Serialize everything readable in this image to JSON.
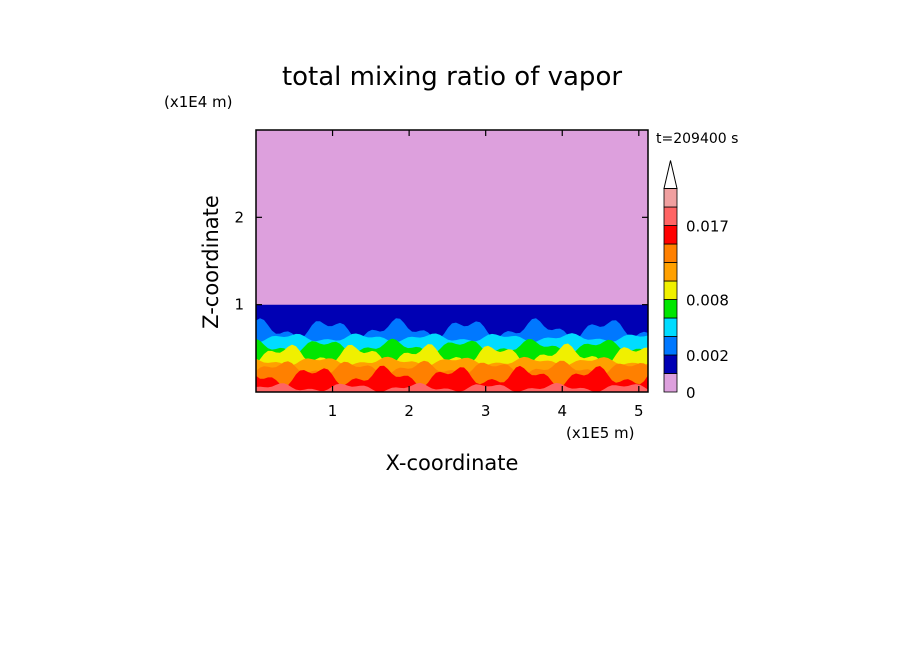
{
  "chart_data": {
    "type": "heatmap",
    "title": "total mixing ratio of vapor",
    "xlabel": "X-coordinate",
    "ylabel": "Z-coordinate",
    "x_unit": "(x1E5 m)",
    "z_unit": "(x1E4 m)",
    "time_label": "t=209400 s",
    "xlim": [
      0,
      5.12
    ],
    "ylim": [
      0,
      3.0
    ],
    "x_ticks": [
      1,
      2,
      3,
      4,
      5
    ],
    "y_ticks": [
      1,
      2
    ],
    "colorbar": {
      "ticks": [
        {
          "value": 0,
          "label": "0"
        },
        {
          "value": 0.002,
          "label": "0.002"
        },
        {
          "value": 0.008,
          "label": "0.008"
        },
        {
          "value": 0.017,
          "label": "0.017"
        }
      ],
      "levels": [
        {
          "from": 0,
          "to": 0.001,
          "color": "#dda0dd"
        },
        {
          "from": 0.001,
          "to": 0.002,
          "color": "#0000b4"
        },
        {
          "from": 0.002,
          "to": 0.004,
          "color": "#0078ff"
        },
        {
          "from": 0.004,
          "to": 0.006,
          "color": "#00dcff"
        },
        {
          "from": 0.006,
          "to": 0.008,
          "color": "#00e600"
        },
        {
          "from": 0.008,
          "to": 0.01,
          "color": "#f0f000"
        },
        {
          "from": 0.01,
          "to": 0.012,
          "color": "#ffa000"
        },
        {
          "from": 0.012,
          "to": 0.014,
          "color": "#ff8000"
        },
        {
          "from": 0.014,
          "to": 0.017,
          "color": "#ff0000"
        },
        {
          "from": 0.017,
          "to": 0.02,
          "color": "#ff6464"
        },
        {
          "from": 0.02,
          "to": 0.023,
          "color": "#f0a0a0"
        }
      ],
      "extend": "max"
    },
    "field_bands": [
      {
        "z_top": 3.0,
        "color": "#dda0dd"
      },
      {
        "z_top": 1.0,
        "color": "#0000b4"
      },
      {
        "z_top": 0.72,
        "color": "#0078ff"
      },
      {
        "z_top": 0.62,
        "color": "#00dcff"
      },
      {
        "z_top": 0.52,
        "color": "#00e600"
      },
      {
        "z_top": 0.43,
        "color": "#f0f000"
      },
      {
        "z_top": 0.35,
        "color": "#ffa000"
      },
      {
        "z_top": 0.27,
        "color": "#ff8000"
      },
      {
        "z_top": 0.18,
        "color": "#ff0000"
      },
      {
        "z_top": 0.05,
        "color": "#ff6464"
      }
    ]
  }
}
